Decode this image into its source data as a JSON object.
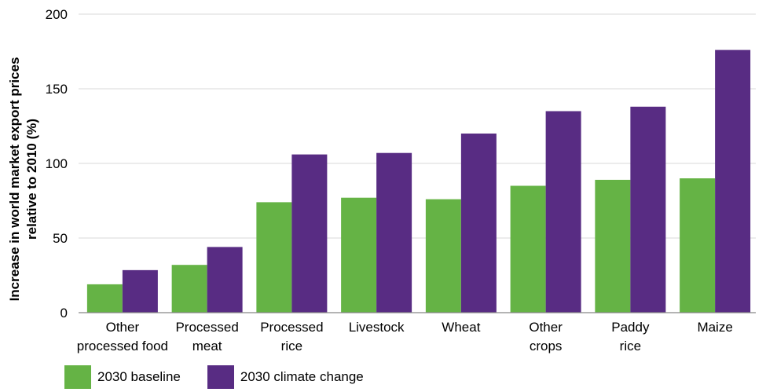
{
  "chart_data": {
    "type": "bar",
    "ylabel": "Increase in world market export prices relative to 2010 (%)",
    "ylim": [
      0,
      200
    ],
    "yticks": [
      0,
      50,
      100,
      150,
      200
    ],
    "grid": true,
    "categories": [
      [
        "Other",
        "processed food"
      ],
      [
        "Processed",
        "meat"
      ],
      [
        "Processed",
        "rice"
      ],
      [
        "Livestock"
      ],
      [
        "Wheat"
      ],
      [
        "Other",
        "crops"
      ],
      [
        "Paddy",
        "rice"
      ],
      [
        "Maize"
      ]
    ],
    "series": [
      {
        "name": "2030 baseline",
        "color": "#65b345",
        "values": [
          19,
          32,
          74,
          77,
          76,
          85,
          89,
          90
        ]
      },
      {
        "name": "2030 climate change",
        "color": "#582c83",
        "values": [
          28.5,
          44,
          106,
          107,
          120,
          135,
          138,
          176
        ]
      }
    ],
    "legend_position": "bottom-left"
  }
}
